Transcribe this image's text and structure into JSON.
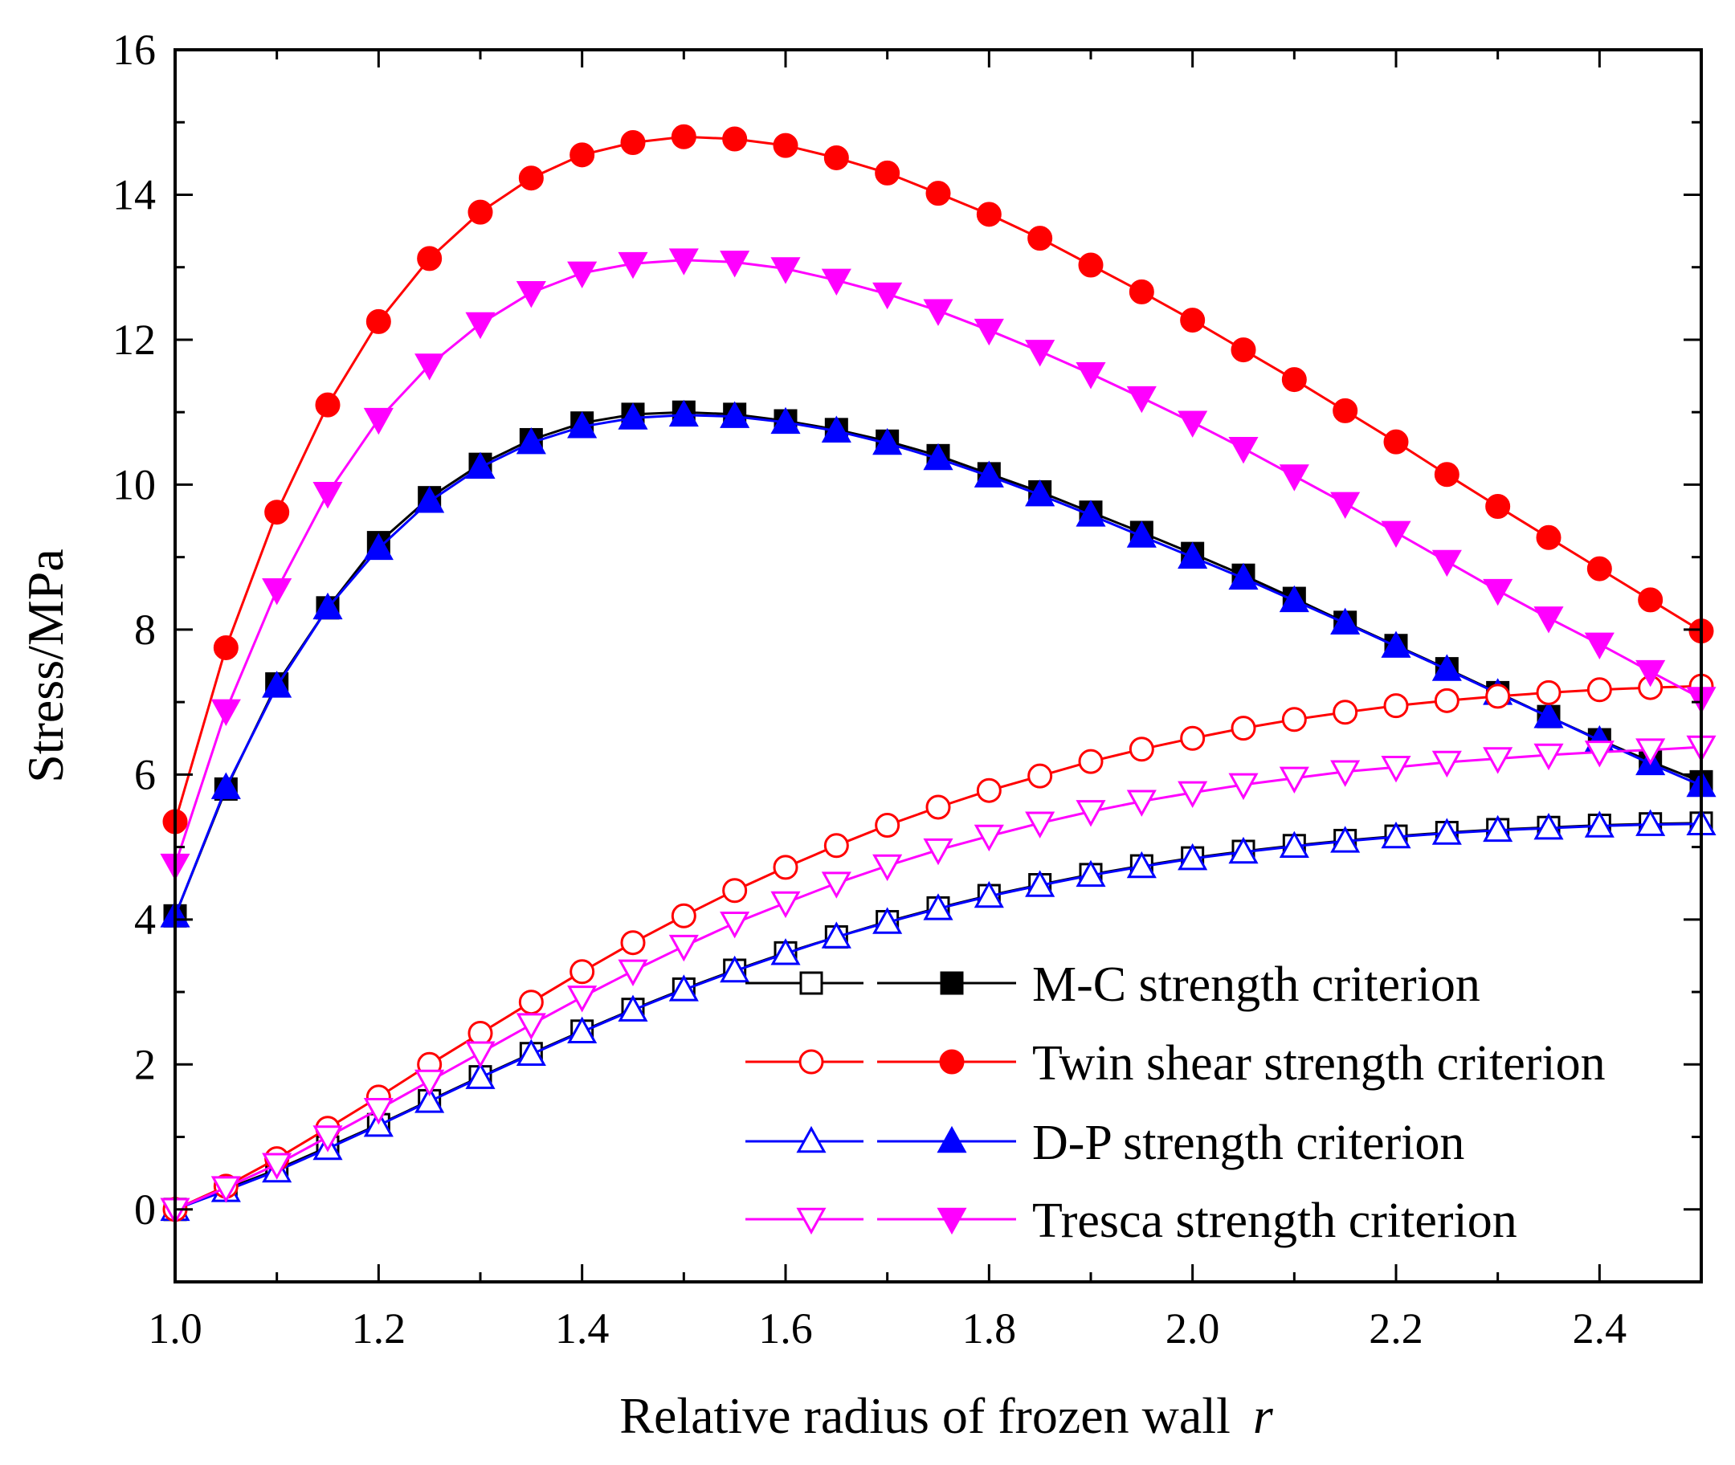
{
  "chart_data": {
    "type": "line",
    "title": "",
    "xlabel": "Relative radius of frozen wall",
    "xlabel_var": "r",
    "ylabel": "Stress/MPa",
    "xlim": [
      1.0,
      2.5
    ],
    "ylim": [
      -1,
      16
    ],
    "xticks": [
      "1.0",
      "1.2",
      "1.4",
      "1.6",
      "1.8",
      "2.0",
      "2.2",
      "2.4"
    ],
    "yticks": [
      "0",
      "2",
      "4",
      "6",
      "8",
      "10",
      "12",
      "14",
      "16"
    ],
    "grid": false,
    "legend_position": "lower-right",
    "x": [
      1.0,
      1.05,
      1.1,
      1.15,
      1.2,
      1.25,
      1.3,
      1.35,
      1.4,
      1.45,
      1.5,
      1.55,
      1.6,
      1.65,
      1.7,
      1.75,
      1.8,
      1.85,
      1.9,
      1.95,
      2.0,
      2.05,
      2.1,
      2.15,
      2.2,
      2.25,
      2.3,
      2.35,
      2.4,
      2.45,
      2.5
    ],
    "criteria": [
      {
        "name": "M-C strength criterion",
        "color": "#000000",
        "marker": "square",
        "open": [
          0,
          0.28,
          0.55,
          0.86,
          1.17,
          1.5,
          1.83,
          2.15,
          2.46,
          2.76,
          3.04,
          3.3,
          3.54,
          3.76,
          3.97,
          4.16,
          4.33,
          4.48,
          4.62,
          4.74,
          4.85,
          4.94,
          5.02,
          5.09,
          5.15,
          5.2,
          5.24,
          5.27,
          5.3,
          5.32,
          5.33
        ],
        "filled": [
          4.05,
          5.8,
          7.25,
          8.3,
          9.2,
          9.82,
          10.28,
          10.62,
          10.85,
          10.97,
          11.0,
          10.97,
          10.88,
          10.76,
          10.6,
          10.4,
          10.15,
          9.9,
          9.62,
          9.34,
          9.05,
          8.75,
          8.43,
          8.1,
          7.78,
          7.46,
          7.13,
          6.8,
          6.48,
          6.18,
          5.9
        ]
      },
      {
        "name": "Twin shear strength criterion",
        "color": "#ff0000",
        "marker": "circle",
        "open": [
          0,
          0.32,
          0.7,
          1.12,
          1.55,
          2.0,
          2.43,
          2.86,
          3.28,
          3.68,
          4.05,
          4.4,
          4.72,
          5.02,
          5.3,
          5.55,
          5.78,
          5.98,
          6.18,
          6.35,
          6.5,
          6.64,
          6.76,
          6.86,
          6.95,
          7.02,
          7.08,
          7.13,
          7.17,
          7.2,
          7.22
        ],
        "filled": [
          5.35,
          7.75,
          9.62,
          11.1,
          12.25,
          13.12,
          13.76,
          14.23,
          14.55,
          14.72,
          14.8,
          14.77,
          14.68,
          14.51,
          14.3,
          14.02,
          13.73,
          13.4,
          13.03,
          12.66,
          12.27,
          11.86,
          11.45,
          11.02,
          10.59,
          10.14,
          9.7,
          9.27,
          8.84,
          8.41,
          7.98
        ]
      },
      {
        "name": "D-P strength criterion",
        "color": "#0000ff",
        "marker": "triangle-up",
        "open": [
          0,
          0.26,
          0.53,
          0.84,
          1.16,
          1.49,
          1.82,
          2.14,
          2.45,
          2.75,
          3.03,
          3.29,
          3.53,
          3.76,
          3.96,
          4.15,
          4.32,
          4.47,
          4.61,
          4.73,
          4.84,
          4.93,
          5.01,
          5.08,
          5.14,
          5.19,
          5.23,
          5.26,
          5.29,
          5.31,
          5.32
        ],
        "filled": [
          4.05,
          5.82,
          7.22,
          8.3,
          9.12,
          9.77,
          10.24,
          10.58,
          10.8,
          10.92,
          10.96,
          10.94,
          10.86,
          10.74,
          10.57,
          10.36,
          10.12,
          9.86,
          9.58,
          9.29,
          9.0,
          8.71,
          8.4,
          8.09,
          7.77,
          7.45,
          7.12,
          6.8,
          6.47,
          6.15,
          5.85
        ]
      },
      {
        "name": "Tresca strength criterion",
        "color": "#ff00ff",
        "marker": "triangle-down",
        "open": [
          0,
          0.3,
          0.62,
          1.0,
          1.38,
          1.77,
          2.16,
          2.55,
          2.93,
          3.29,
          3.63,
          3.95,
          4.23,
          4.5,
          4.74,
          4.96,
          5.15,
          5.33,
          5.49,
          5.63,
          5.75,
          5.86,
          5.95,
          6.04,
          6.1,
          6.17,
          6.22,
          6.27,
          6.31,
          6.34,
          6.38
        ],
        "filled": [
          4.75,
          6.88,
          8.55,
          9.88,
          10.9,
          11.65,
          12.22,
          12.65,
          12.92,
          13.05,
          13.1,
          13.07,
          12.98,
          12.82,
          12.63,
          12.4,
          12.13,
          11.84,
          11.53,
          11.2,
          10.86,
          10.5,
          10.12,
          9.74,
          9.34,
          8.94,
          8.54,
          8.16,
          7.8,
          7.42,
          7.05
        ]
      }
    ]
  }
}
